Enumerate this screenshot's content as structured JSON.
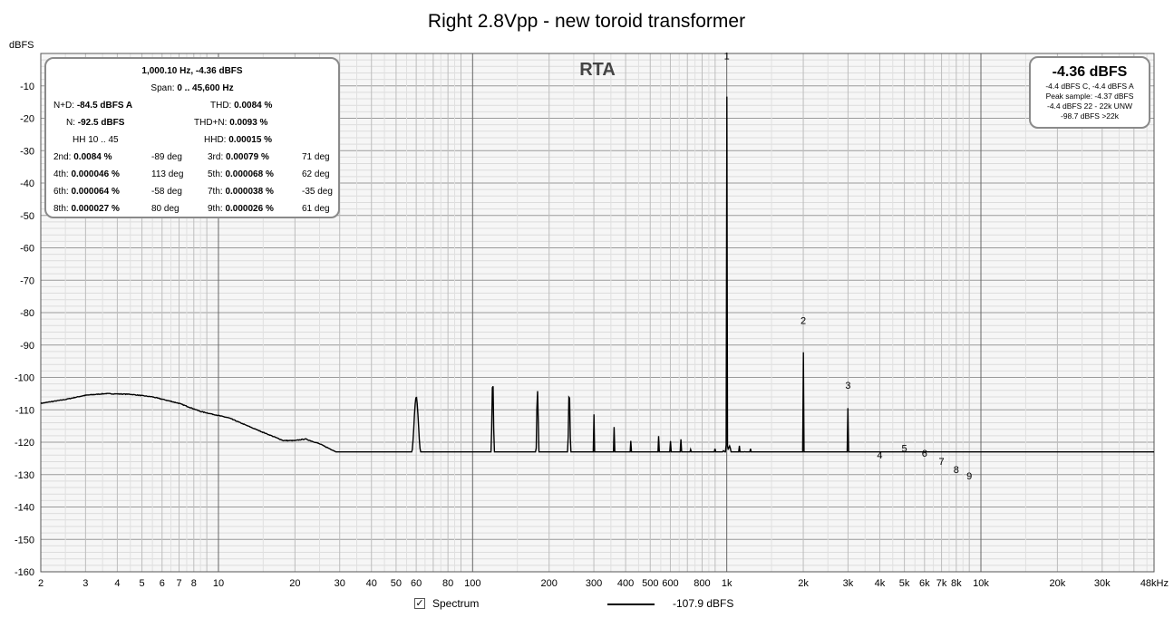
{
  "chart_data": {
    "type": "line",
    "title": "Right 2.8Vpp - new toroid transformer",
    "ylabel": "dBFS",
    "xscale": "log",
    "xlim": [
      2,
      48000
    ],
    "ylim": [
      -160,
      0
    ],
    "grid": true,
    "y_ticks": [
      {
        "v": -10,
        "label": "-10"
      },
      {
        "v": -20,
        "label": "-20"
      },
      {
        "v": -30,
        "label": "-30"
      },
      {
        "v": -40,
        "label": "-40"
      },
      {
        "v": -50,
        "label": "-50"
      },
      {
        "v": -60,
        "label": "-60"
      },
      {
        "v": -70,
        "label": "-70"
      },
      {
        "v": -80,
        "label": "-80"
      },
      {
        "v": -90,
        "label": "-90"
      },
      {
        "v": -100,
        "label": "-100"
      },
      {
        "v": -110,
        "label": "-110"
      },
      {
        "v": -120,
        "label": "-120"
      },
      {
        "v": -130,
        "label": "-130"
      },
      {
        "v": -140,
        "label": "-140"
      },
      {
        "v": -150,
        "label": "-150"
      },
      {
        "v": -160,
        "label": "-160"
      }
    ],
    "x_ticks": [
      {
        "v": 2,
        "label": "2"
      },
      {
        "v": 3,
        "label": "3"
      },
      {
        "v": 4,
        "label": "4"
      },
      {
        "v": 5,
        "label": "5"
      },
      {
        "v": 6,
        "label": "6"
      },
      {
        "v": 7,
        "label": "7"
      },
      {
        "v": 8,
        "label": "8"
      },
      {
        "v": 10,
        "label": "10"
      },
      {
        "v": 20,
        "label": "20"
      },
      {
        "v": 30,
        "label": "30"
      },
      {
        "v": 40,
        "label": "40"
      },
      {
        "v": 50,
        "label": "50"
      },
      {
        "v": 60,
        "label": "60"
      },
      {
        "v": 80,
        "label": "80"
      },
      {
        "v": 100,
        "label": "100"
      },
      {
        "v": 200,
        "label": "200"
      },
      {
        "v": 300,
        "label": "300"
      },
      {
        "v": 400,
        "label": "400"
      },
      {
        "v": 500,
        "label": "500"
      },
      {
        "v": 600,
        "label": "600"
      },
      {
        "v": 800,
        "label": "800"
      },
      {
        "v": 1000,
        "label": "1k"
      },
      {
        "v": 2000,
        "label": "2k"
      },
      {
        "v": 3000,
        "label": "3k"
      },
      {
        "v": 4000,
        "label": "4k"
      },
      {
        "v": 5000,
        "label": "5k"
      },
      {
        "v": 6000,
        "label": "6k"
      },
      {
        "v": 7000,
        "label": "7k"
      },
      {
        "v": 8000,
        "label": "8k"
      },
      {
        "v": 10000,
        "label": "10k"
      },
      {
        "v": 20000,
        "label": "20k"
      },
      {
        "v": 30000,
        "label": "30k"
      },
      {
        "v": 48000,
        "label": "48kHz"
      }
    ],
    "overlay_label": "RTA",
    "series": [
      {
        "name": "Spectrum",
        "color": "#000000",
        "floor": [
          [
            2,
            -108
          ],
          [
            2.5,
            -106.8
          ],
          [
            3,
            -105.5
          ],
          [
            3.6,
            -105
          ],
          [
            4.5,
            -105.2
          ],
          [
            5.5,
            -106
          ],
          [
            7,
            -108
          ],
          [
            8.5,
            -110.5
          ],
          [
            11,
            -112.5
          ],
          [
            14,
            -116
          ],
          [
            18,
            -119.5
          ],
          [
            20,
            -119.5
          ],
          [
            22,
            -119
          ],
          [
            25,
            -120.5
          ],
          [
            30,
            -123.5
          ],
          [
            35,
            -124
          ],
          [
            40,
            -125
          ],
          [
            45,
            -126.5
          ],
          [
            50,
            -126
          ],
          [
            55,
            -125.5
          ],
          [
            65,
            -127
          ],
          [
            80,
            -127
          ],
          [
            100,
            -128
          ],
          [
            140,
            -128.5
          ],
          [
            200,
            -129
          ],
          [
            300,
            -130
          ],
          [
            500,
            -131
          ],
          [
            700,
            -132
          ],
          [
            850,
            -131
          ],
          [
            920,
            -128
          ],
          [
            970,
            -123
          ],
          [
            1030,
            -123
          ],
          [
            1080,
            -130
          ],
          [
            1200,
            -133
          ],
          [
            1500,
            -134
          ],
          [
            2000,
            -134.5
          ],
          [
            3000,
            -134
          ],
          [
            4000,
            -133
          ],
          [
            5000,
            -130
          ],
          [
            6000,
            -131
          ],
          [
            8000,
            -134
          ],
          [
            10000,
            -136.5
          ],
          [
            20000,
            -137
          ],
          [
            48000,
            -137
          ]
        ],
        "peaks": [
          [
            60,
            -106
          ],
          [
            120,
            -100.5
          ],
          [
            180,
            -104
          ],
          [
            240,
            -104
          ],
          [
            300,
            -110
          ],
          [
            360,
            -112
          ],
          [
            420,
            -115
          ],
          [
            480,
            -117
          ],
          [
            540,
            -117
          ],
          [
            600,
            -118
          ],
          [
            660,
            -119
          ],
          [
            720,
            -119
          ],
          [
            780,
            -120
          ],
          [
            840,
            -121
          ],
          [
            900,
            -121
          ],
          [
            1000,
            -4.4
          ],
          [
            1120,
            -120
          ],
          [
            1180,
            -122
          ],
          [
            1240,
            -122
          ],
          [
            1300,
            -123
          ],
          [
            1400,
            -124
          ],
          [
            1500,
            -124
          ],
          [
            1600,
            -124
          ],
          [
            1700,
            -124
          ],
          [
            1800,
            -124
          ],
          [
            2000,
            -86
          ],
          [
            2100,
            -124
          ],
          [
            2300,
            -124
          ],
          [
            2400,
            -124
          ],
          [
            2600,
            -124
          ],
          [
            2800,
            -125
          ],
          [
            3000,
            -106
          ],
          [
            3200,
            -125
          ],
          [
            3400,
            -125
          ],
          [
            3600,
            -125
          ],
          [
            3800,
            -125
          ],
          [
            4000,
            -127.5
          ],
          [
            4200,
            -126
          ],
          [
            4400,
            -126
          ],
          [
            4600,
            -126
          ],
          [
            5000,
            -125.5
          ],
          [
            5400,
            -127
          ],
          [
            6000,
            -127
          ],
          [
            6500,
            -129
          ],
          [
            7000,
            -129.5
          ],
          [
            7500,
            -131
          ],
          [
            8000,
            -132
          ],
          [
            9000,
            -134
          ]
        ],
        "harmonic_labels": [
          {
            "label": "1",
            "f": 1000,
            "db": -4.4
          },
          {
            "label": "2",
            "f": 2000,
            "db": -86
          },
          {
            "label": "3",
            "f": 3000,
            "db": -106
          },
          {
            "label": "4",
            "f": 4000,
            "db": -127.5
          },
          {
            "label": "5",
            "f": 5000,
            "db": -125.5
          },
          {
            "label": "6",
            "f": 6000,
            "db": -127
          },
          {
            "label": "7",
            "f": 7000,
            "db": -129.5
          },
          {
            "label": "8",
            "f": 8000,
            "db": -132
          },
          {
            "label": "9",
            "f": 9000,
            "db": -134
          }
        ]
      }
    ],
    "legend": {
      "checkbox": "✓",
      "label": "Spectrum",
      "value": "-107.9 dBFS"
    }
  },
  "stats_panel": {
    "peak": "1,000.10 Hz, -4.36 dBFS",
    "span": "Span:",
    "span_value": "0 .. 45,600 Hz",
    "nd_label": "N+D:",
    "nd_value": "-84.5 dBFS A",
    "thd_label": "THD:",
    "thd_value": "0.0084 %",
    "n_label": "N:",
    "n_value": "-92.5 dBFS",
    "thdn_label": "THD+N:",
    "thdn_value": "0.0093 %",
    "hh_label": "HH 10 .. 45",
    "hhd_label": "HHD:",
    "hhd_value": "0.00015 %",
    "harmonics": [
      {
        "a_label": "2nd:",
        "a_value": "0.0084 %",
        "a_deg": "-89 deg",
        "b_label": "3rd:",
        "b_value": "0.00079 %",
        "b_deg": "71 deg"
      },
      {
        "a_label": "4th:",
        "a_value": "0.000046 %",
        "a_deg": "113 deg",
        "b_label": "5th:",
        "b_value": "0.000068 %",
        "b_deg": "62 deg"
      },
      {
        "a_label": "6th:",
        "a_value": "0.000064 %",
        "a_deg": "-58 deg",
        "b_label": "7th:",
        "b_value": "0.000038 %",
        "b_deg": "-35 deg"
      },
      {
        "a_label": "8th:",
        "a_value": "0.000027 %",
        "a_deg": "80 deg",
        "b_label": "9th:",
        "b_value": "0.000026 %",
        "b_deg": "61 deg"
      }
    ]
  },
  "level_panel": {
    "value": "-4.36 dBFS",
    "line1": "-4.4 dBFS C, -4.4 dBFS A",
    "line2": "Peak sample: -4.37 dBFS",
    "line3": "-4.4 dBFS 22 - 22k UNW",
    "line4": "-98.7 dBFS >22k"
  }
}
